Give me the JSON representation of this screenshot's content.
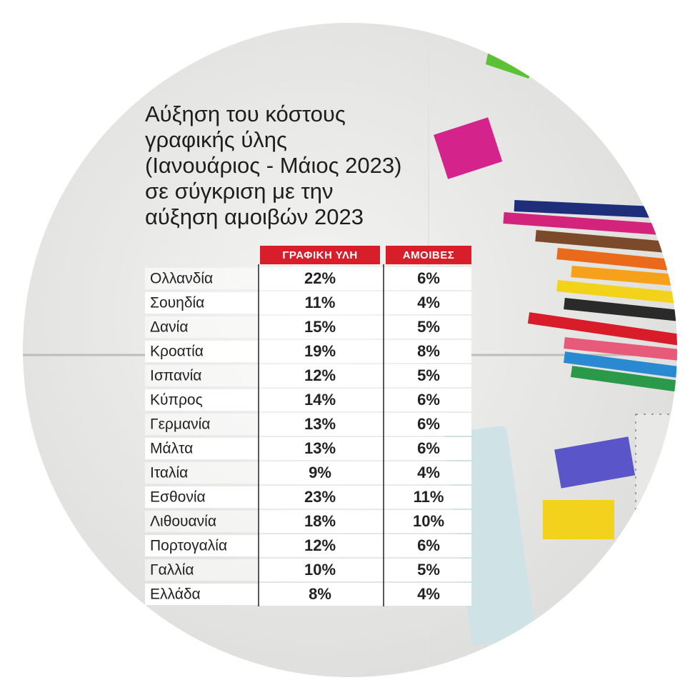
{
  "title": [
    "Αύξηση του κόστους",
    "γραφικής ύλης",
    "(Ιανουάριος - Μάιος 2023)",
    "σε σύγκριση με την",
    "αύξηση αμοιβών 2023"
  ],
  "table": {
    "columns": [
      "ΓΡΑΦΙΚΗ ΥΛΗ",
      "ΑΜΟΙΒΕΣ"
    ],
    "rows": [
      [
        "Ολλανδία",
        "22%",
        "6%"
      ],
      [
        "Σουηδία",
        "11%",
        "4%"
      ],
      [
        "Δανία",
        "15%",
        "5%"
      ],
      [
        "Κροατία",
        "19%",
        "8%"
      ],
      [
        "Ισπανία",
        "12%",
        "5%"
      ],
      [
        "Κύπρος",
        "14%",
        "6%"
      ],
      [
        "Γερμανία",
        "13%",
        "6%"
      ],
      [
        "Μάλτα",
        "13%",
        "6%"
      ],
      [
        "Ιταλία",
        "9%",
        "4%"
      ],
      [
        "Εσθονία",
        "23%",
        "11%"
      ],
      [
        "Λιθουανία",
        "18%",
        "10%"
      ],
      [
        "Πορτογαλία",
        "12%",
        "6%"
      ],
      [
        "Γαλλία",
        "10%",
        "5%"
      ],
      [
        "Ελλάδα",
        "8%",
        "4%"
      ]
    ]
  }
}
